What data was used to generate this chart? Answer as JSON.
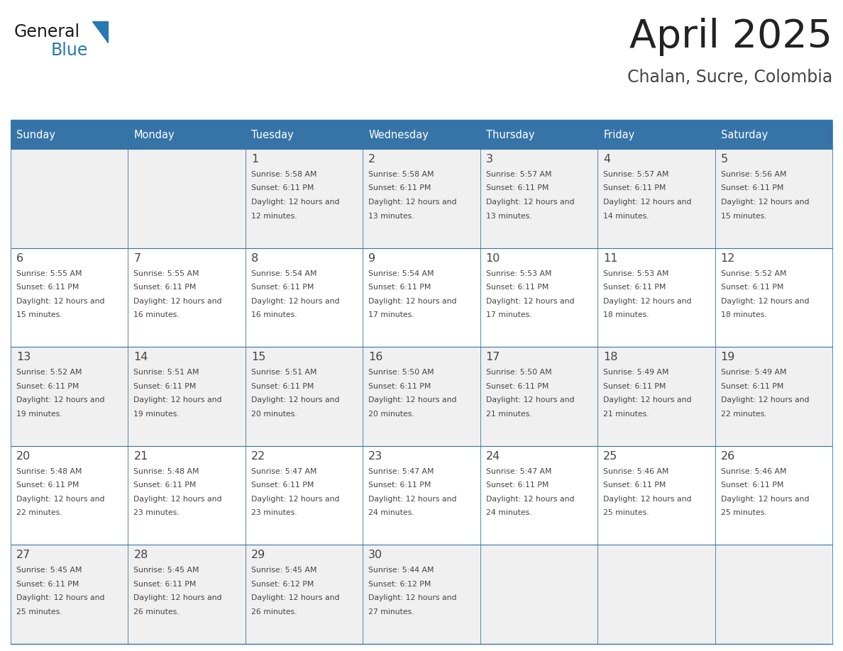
{
  "title": "April 2025",
  "subtitle": "Chalan, Sucre, Colombia",
  "header_bg_color": "#3674a8",
  "header_text_color": "#ffffff",
  "cell_bg_color_row0": "#f0f0f0",
  "cell_bg_color_row1": "#ffffff",
  "cell_text_color": "#444444",
  "border_color": "#3674a8",
  "days_of_week": [
    "Sunday",
    "Monday",
    "Tuesday",
    "Wednesday",
    "Thursday",
    "Friday",
    "Saturday"
  ],
  "title_color": "#222222",
  "subtitle_color": "#444444",
  "logo_general_color": "#1a1a1a",
  "logo_blue_color": "#2878b4",
  "calendar_data": [
    [
      {
        "day": null,
        "sunrise": null,
        "sunset": null,
        "daylight": null
      },
      {
        "day": null,
        "sunrise": null,
        "sunset": null,
        "daylight": null
      },
      {
        "day": 1,
        "sunrise": "5:58 AM",
        "sunset": "6:11 PM",
        "daylight": "12 hours and 12 minutes."
      },
      {
        "day": 2,
        "sunrise": "5:58 AM",
        "sunset": "6:11 PM",
        "daylight": "12 hours and 13 minutes."
      },
      {
        "day": 3,
        "sunrise": "5:57 AM",
        "sunset": "6:11 PM",
        "daylight": "12 hours and 13 minutes."
      },
      {
        "day": 4,
        "sunrise": "5:57 AM",
        "sunset": "6:11 PM",
        "daylight": "12 hours and 14 minutes."
      },
      {
        "day": 5,
        "sunrise": "5:56 AM",
        "sunset": "6:11 PM",
        "daylight": "12 hours and 15 minutes."
      }
    ],
    [
      {
        "day": 6,
        "sunrise": "5:55 AM",
        "sunset": "6:11 PM",
        "daylight": "12 hours and 15 minutes."
      },
      {
        "day": 7,
        "sunrise": "5:55 AM",
        "sunset": "6:11 PM",
        "daylight": "12 hours and 16 minutes."
      },
      {
        "day": 8,
        "sunrise": "5:54 AM",
        "sunset": "6:11 PM",
        "daylight": "12 hours and 16 minutes."
      },
      {
        "day": 9,
        "sunrise": "5:54 AM",
        "sunset": "6:11 PM",
        "daylight": "12 hours and 17 minutes."
      },
      {
        "day": 10,
        "sunrise": "5:53 AM",
        "sunset": "6:11 PM",
        "daylight": "12 hours and 17 minutes."
      },
      {
        "day": 11,
        "sunrise": "5:53 AM",
        "sunset": "6:11 PM",
        "daylight": "12 hours and 18 minutes."
      },
      {
        "day": 12,
        "sunrise": "5:52 AM",
        "sunset": "6:11 PM",
        "daylight": "12 hours and 18 minutes."
      }
    ],
    [
      {
        "day": 13,
        "sunrise": "5:52 AM",
        "sunset": "6:11 PM",
        "daylight": "12 hours and 19 minutes."
      },
      {
        "day": 14,
        "sunrise": "5:51 AM",
        "sunset": "6:11 PM",
        "daylight": "12 hours and 19 minutes."
      },
      {
        "day": 15,
        "sunrise": "5:51 AM",
        "sunset": "6:11 PM",
        "daylight": "12 hours and 20 minutes."
      },
      {
        "day": 16,
        "sunrise": "5:50 AM",
        "sunset": "6:11 PM",
        "daylight": "12 hours and 20 minutes."
      },
      {
        "day": 17,
        "sunrise": "5:50 AM",
        "sunset": "6:11 PM",
        "daylight": "12 hours and 21 minutes."
      },
      {
        "day": 18,
        "sunrise": "5:49 AM",
        "sunset": "6:11 PM",
        "daylight": "12 hours and 21 minutes."
      },
      {
        "day": 19,
        "sunrise": "5:49 AM",
        "sunset": "6:11 PM",
        "daylight": "12 hours and 22 minutes."
      }
    ],
    [
      {
        "day": 20,
        "sunrise": "5:48 AM",
        "sunset": "6:11 PM",
        "daylight": "12 hours and 22 minutes."
      },
      {
        "day": 21,
        "sunrise": "5:48 AM",
        "sunset": "6:11 PM",
        "daylight": "12 hours and 23 minutes."
      },
      {
        "day": 22,
        "sunrise": "5:47 AM",
        "sunset": "6:11 PM",
        "daylight": "12 hours and 23 minutes."
      },
      {
        "day": 23,
        "sunrise": "5:47 AM",
        "sunset": "6:11 PM",
        "daylight": "12 hours and 24 minutes."
      },
      {
        "day": 24,
        "sunrise": "5:47 AM",
        "sunset": "6:11 PM",
        "daylight": "12 hours and 24 minutes."
      },
      {
        "day": 25,
        "sunrise": "5:46 AM",
        "sunset": "6:11 PM",
        "daylight": "12 hours and 25 minutes."
      },
      {
        "day": 26,
        "sunrise": "5:46 AM",
        "sunset": "6:11 PM",
        "daylight": "12 hours and 25 minutes."
      }
    ],
    [
      {
        "day": 27,
        "sunrise": "5:45 AM",
        "sunset": "6:11 PM",
        "daylight": "12 hours and 25 minutes."
      },
      {
        "day": 28,
        "sunrise": "5:45 AM",
        "sunset": "6:11 PM",
        "daylight": "12 hours and 26 minutes."
      },
      {
        "day": 29,
        "sunrise": "5:45 AM",
        "sunset": "6:12 PM",
        "daylight": "12 hours and 26 minutes."
      },
      {
        "day": 30,
        "sunrise": "5:44 AM",
        "sunset": "6:12 PM",
        "daylight": "12 hours and 27 minutes."
      },
      {
        "day": null,
        "sunrise": null,
        "sunset": null,
        "daylight": null
      },
      {
        "day": null,
        "sunrise": null,
        "sunset": null,
        "daylight": null
      },
      {
        "day": null,
        "sunrise": null,
        "sunset": null,
        "daylight": null
      }
    ]
  ]
}
